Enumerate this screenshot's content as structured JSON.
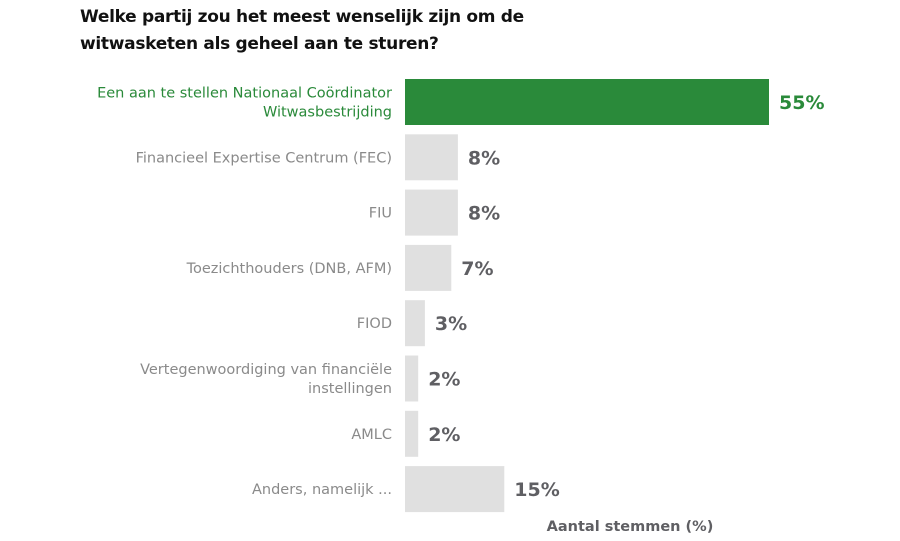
{
  "chart_data": {
    "type": "bar",
    "orientation": "horizontal",
    "title": [
      "Welke partij zou het meest wenselijk zijn om de",
      "witwasketen als geheel aan te sturen?"
    ],
    "xlabel": "Aantal stemmen (%)",
    "ylabel": "",
    "xlim": [
      0,
      55
    ],
    "grid": false,
    "categories": [
      [
        "Een aan te stellen Nationaal Coördinator",
        "Witwasbestrijding"
      ],
      [
        "Financieel Expertise Centrum (FEC)"
      ],
      [
        "FIU"
      ],
      [
        "Toezichthouders (DNB, AFM)"
      ],
      [
        "FIOD"
      ],
      [
        "Vertegenwoordiging van financiële",
        "instellingen"
      ],
      [
        "AMLC"
      ],
      [
        "Anders, namelijk ..."
      ]
    ],
    "values": [
      55,
      8,
      8,
      7,
      3,
      2,
      2,
      15
    ],
    "value_labels": [
      "55%",
      "8%",
      "8%",
      "7%",
      "3%",
      "2%",
      "2%",
      "15%"
    ],
    "highlight_index": 0,
    "colors": {
      "highlight": "#2a8a3a",
      "default": "#e0e0e0",
      "label_default": "#8a8a8a",
      "value_default": "#5f5f63"
    }
  }
}
